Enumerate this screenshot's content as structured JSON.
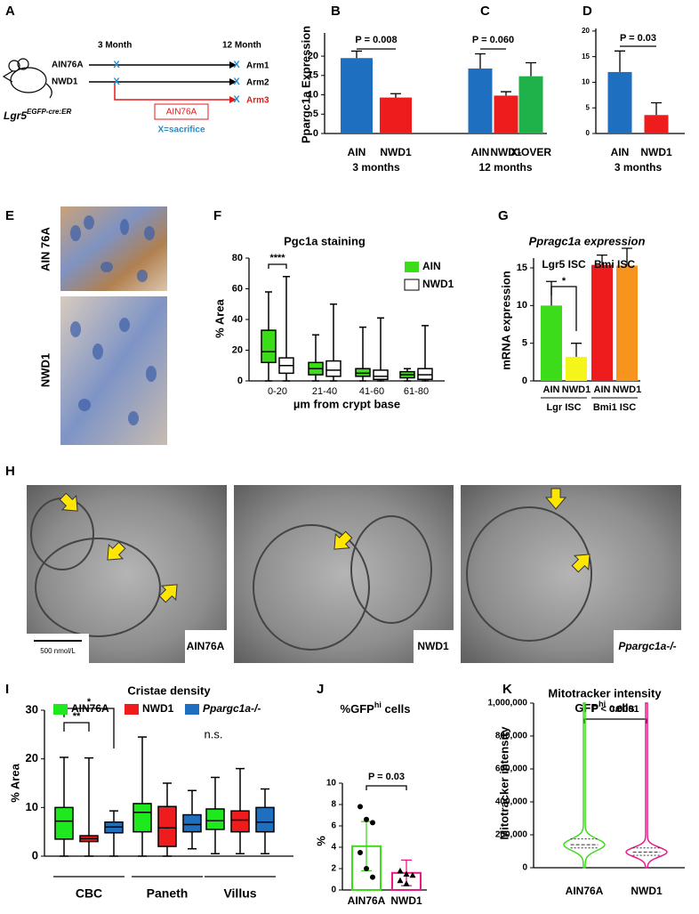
{
  "panel_letters": [
    "A",
    "B",
    "C",
    "D",
    "E",
    "F",
    "G",
    "H",
    "I",
    "J",
    "K"
  ],
  "diagram": {
    "time_labels": [
      "3 Month",
      "12 Month"
    ],
    "diets": [
      "AIN76A",
      "NWD1"
    ],
    "arms": [
      "Arm1",
      "Arm2",
      "Arm3"
    ],
    "switch_diet": "AIN76A",
    "legend": "X=sacrifice",
    "mouse_label": [
      "Lgr5",
      "EGFP-cre:ER"
    ],
    "marker": "X"
  },
  "images": {
    "E": [
      "AIN 76A",
      "NWD1"
    ],
    "H": [
      "AIN76A",
      "NWD1",
      "Ppargc1a-/-"
    ],
    "scale_bar": "500 nmol/L"
  },
  "chart_data": [
    {
      "type": "bar",
      "y_label": "Ppargc1a Expression",
      "categories": [
        "AIN",
        "NWD1"
      ],
      "values": [
        19.5,
        9.3
      ],
      "errors": [
        1.8,
        1.0
      ],
      "colors": [
        "#1f6fc0",
        "#ee1c1c"
      ],
      "ylim": [
        0,
        26
      ],
      "yticks": [
        0,
        5,
        10,
        15,
        20
      ],
      "group_label": "3 months",
      "annotation": "P = 0.008"
    },
    {
      "type": "bar",
      "categories": [
        "AIN",
        "NWD1",
        "X-OVER"
      ],
      "values": [
        16.8,
        9.8,
        14.8
      ],
      "errors": [
        3.8,
        1.0,
        3.5
      ],
      "colors": [
        "#1f6fc0",
        "#ee1c1c",
        "#1fb24a"
      ],
      "ylim": [
        0,
        26
      ],
      "group_label": "12 months",
      "annotation": "P = 0.060"
    },
    {
      "type": "bar",
      "categories": [
        "AIN",
        "NWD1"
      ],
      "values": [
        12,
        3.6
      ],
      "errors": [
        4.1,
        2.4
      ],
      "colors": [
        "#1f6fc0",
        "#ee1c1c"
      ],
      "ylim": [
        0,
        20.5
      ],
      "yticks": [
        0,
        5,
        10,
        15,
        20
      ],
      "group_label": "3 months",
      "annotation": "P = 0.03"
    },
    {
      "type": "box",
      "title": "Pgc1a staining",
      "y_label": "% Area",
      "x_label": "µm from crypt base",
      "categories": [
        "0-20",
        "21-40",
        "41-60",
        "61-80"
      ],
      "ylim": [
        0,
        80
      ],
      "yticks": [
        0,
        20,
        40,
        60,
        80
      ],
      "annotation": "****",
      "series": [
        {
          "name": "AIN",
          "color": "#3ddc1a",
          "values": [
            {
              "min": 0,
              "q1": 12,
              "median": 19,
              "q3": 33,
              "max": 58
            },
            {
              "min": 0,
              "q1": 4,
              "median": 8,
              "q3": 12,
              "max": 30
            },
            {
              "min": 0,
              "q1": 3,
              "median": 5,
              "q3": 8,
              "max": 35
            },
            {
              "min": 0,
              "q1": 2,
              "median": 4,
              "q3": 6,
              "max": 8
            }
          ]
        },
        {
          "name": "NWD1",
          "color": "#ffffff",
          "values": [
            {
              "min": 0,
              "q1": 5,
              "median": 10,
              "q3": 15,
              "max": 68
            },
            {
              "min": 0,
              "q1": 3,
              "median": 7,
              "q3": 13,
              "max": 50
            },
            {
              "min": 0,
              "q1": 1,
              "median": 3,
              "q3": 7,
              "max": 41
            },
            {
              "min": 0,
              "q1": 1,
              "median": 4,
              "q3": 8,
              "max": 36
            }
          ]
        }
      ]
    },
    {
      "type": "bar",
      "title": "Ppragc1a expression",
      "y_label": "mRNA expression",
      "categories": [
        "AIN",
        "NWD1",
        "AIN",
        "NWD1"
      ],
      "values": [
        10,
        3.2,
        15.4,
        15.3
      ],
      "errors": [
        3.2,
        1.8,
        1.3,
        2.3
      ],
      "colors": [
        "#3ddc1a",
        "#f5f51a",
        "#ee1c1c",
        "#f7941d"
      ],
      "ylim": [
        0,
        16.3
      ],
      "yticks": [
        0,
        5,
        10,
        15
      ],
      "group_labels": [
        "Lgr5 ISC",
        "Bmi ISC"
      ],
      "subgroup_labels": [
        "Lgr ISC",
        "Bmi1 ISC"
      ],
      "annotation": "*"
    },
    {
      "type": "box",
      "title": "Cristae density",
      "y_label": "% Area",
      "categories": [
        "CBC",
        "Paneth",
        "Villus"
      ],
      "ylim": [
        0,
        30
      ],
      "yticks": [
        0,
        10,
        20,
        30
      ],
      "annotations": [
        "**",
        "*",
        "n.s."
      ],
      "series": [
        {
          "name": "AIN76A",
          "color": "#1ee81e",
          "values": [
            {
              "min": 0,
              "q1": 3.5,
              "median": 7.2,
              "q3": 10,
              "max": 20.3
            },
            {
              "min": 0,
              "q1": 5,
              "median": 9,
              "q3": 10.8,
              "max": 24.5
            },
            {
              "min": 0.5,
              "q1": 5.5,
              "median": 7.3,
              "q3": 9.7,
              "max": 16.2
            }
          ]
        },
        {
          "name": "NWD1",
          "color": "#ee1c1c",
          "values": [
            {
              "min": 0,
              "q1": 3,
              "median": 3.6,
              "q3": 4.2,
              "max": 20.2
            },
            {
              "min": 0,
              "q1": 2,
              "median": 5.8,
              "q3": 10.2,
              "max": 15
            },
            {
              "min": 0.5,
              "q1": 5,
              "median": 7.4,
              "q3": 9.3,
              "max": 18
            }
          ]
        },
        {
          "name": "Ppargc1a-/-",
          "color": "#1f6fc0",
          "values": [
            {
              "min": 0,
              "q1": 4.8,
              "median": 6,
              "q3": 7,
              "max": 9.3
            },
            {
              "min": 1.5,
              "q1": 5,
              "median": 6.5,
              "q3": 8.5,
              "max": 13.5
            },
            {
              "min": 0.5,
              "q1": 5,
              "median": 7,
              "q3": 10,
              "max": 13.8
            }
          ]
        }
      ]
    },
    {
      "type": "bar",
      "title": [
        "%GFP",
        "hi",
        " cells"
      ],
      "y_label": "%",
      "categories": [
        "AIN76A",
        "NWD1"
      ],
      "values": [
        4.1,
        1.6
      ],
      "errors": [
        2.3,
        1.2
      ],
      "colors": [
        "#3ddc1a",
        "#e8198b"
      ],
      "filled": false,
      "points": [
        [
          7.8,
          6.6,
          6.3,
          3.5,
          2.0,
          1.2
        ],
        [
          1.8,
          1.5,
          1.4,
          0.9,
          0.6
        ]
      ],
      "ylim": [
        0,
        10
      ],
      "yticks": [
        0,
        2,
        4,
        6,
        8,
        10
      ],
      "annotation": "P = 0.03"
    },
    {
      "type": "violin",
      "title": "Mitotracker intensity",
      "subtitle": [
        "GFP",
        "hi",
        " cells"
      ],
      "y_label": "Mitotracker intensity",
      "categories": [
        "AIN76A",
        "NWD1"
      ],
      "colors": [
        "#3ddc1a",
        "#e8198b"
      ],
      "values": [
        {
          "min": 0,
          "q1": 120000,
          "median": 140000,
          "q3": 175000,
          "max": 1000000
        },
        {
          "min": 0,
          "q1": 75000,
          "median": 95000,
          "q3": 120000,
          "max": 1000000
        }
      ],
      "ylim": [
        0,
        1000000
      ],
      "yticks": [
        0,
        {
          "value": 200000,
          "label": "200,000"
        },
        {
          "value": 400000,
          "label": "400,000"
        },
        {
          "value": 600000,
          "label": "600,000"
        },
        {
          "value": 800000,
          "label": "800,000"
        },
        {
          "value": 1000000,
          "label": "1,000,000"
        }
      ],
      "annotation": "P < 0.0001"
    }
  ]
}
